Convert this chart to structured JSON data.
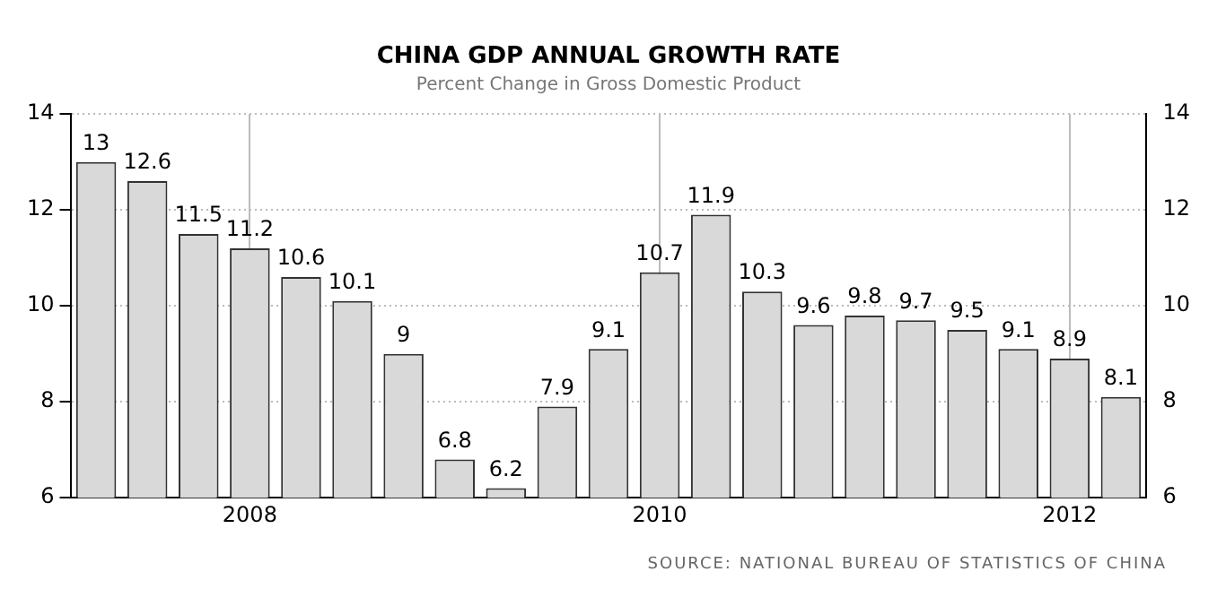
{
  "chart_data": {
    "type": "bar",
    "title": "CHINA GDP ANNUAL GROWTH RATE",
    "subtitle": "Percent Change in Gross Domestic Product",
    "categories": [
      null,
      null,
      null,
      "2008",
      null,
      null,
      null,
      null,
      null,
      null,
      null,
      "2010",
      null,
      null,
      null,
      null,
      null,
      null,
      null,
      "2012",
      null
    ],
    "values": [
      13,
      12.6,
      11.5,
      11.2,
      10.6,
      10.1,
      9,
      6.8,
      6.2,
      7.9,
      9.1,
      10.7,
      11.9,
      10.3,
      9.6,
      9.8,
      9.7,
      9.5,
      9.1,
      8.9,
      8.1
    ],
    "color": "#d9d9d9",
    "ylim": [
      6,
      14
    ],
    "yticks": [
      6,
      8,
      10,
      12,
      14
    ],
    "y2lim": [
      6,
      14
    ],
    "y2ticks": [
      6,
      8,
      10,
      12,
      14
    ],
    "grid": true,
    "data_labels": true,
    "annotations": [
      "SOURCE: NATIONAL BUREAU OF STATISTICS OF CHINA"
    ]
  }
}
